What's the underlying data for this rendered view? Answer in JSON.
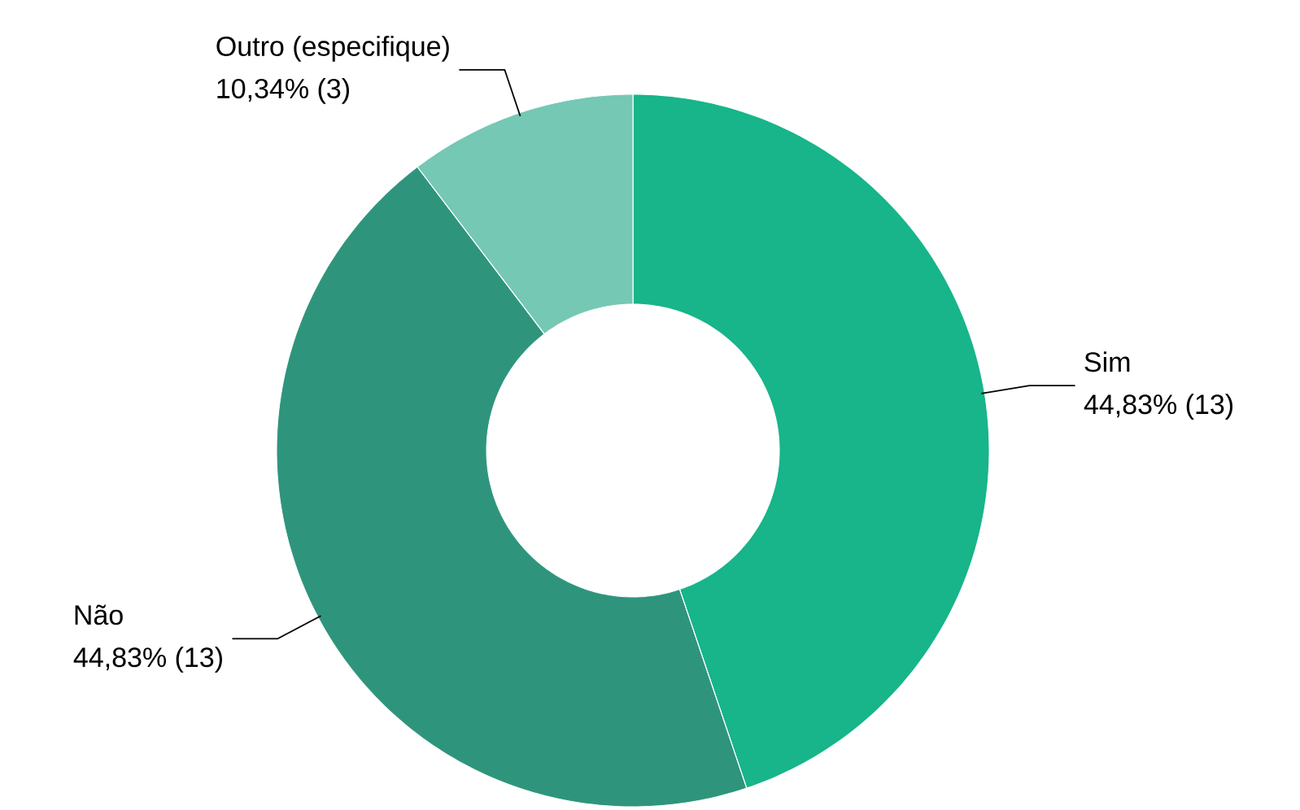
{
  "chart_data": {
    "type": "donut",
    "categories": [
      "Sim",
      "Não",
      "Outro (especifique)"
    ],
    "values": [
      44.83,
      44.83,
      10.34
    ],
    "colors": [
      "#17b589",
      "#2e957c",
      "#75c8b4"
    ],
    "value_labels": [
      "44,83% (13)",
      "44,83% (13)",
      "10,34% (3)"
    ]
  }
}
